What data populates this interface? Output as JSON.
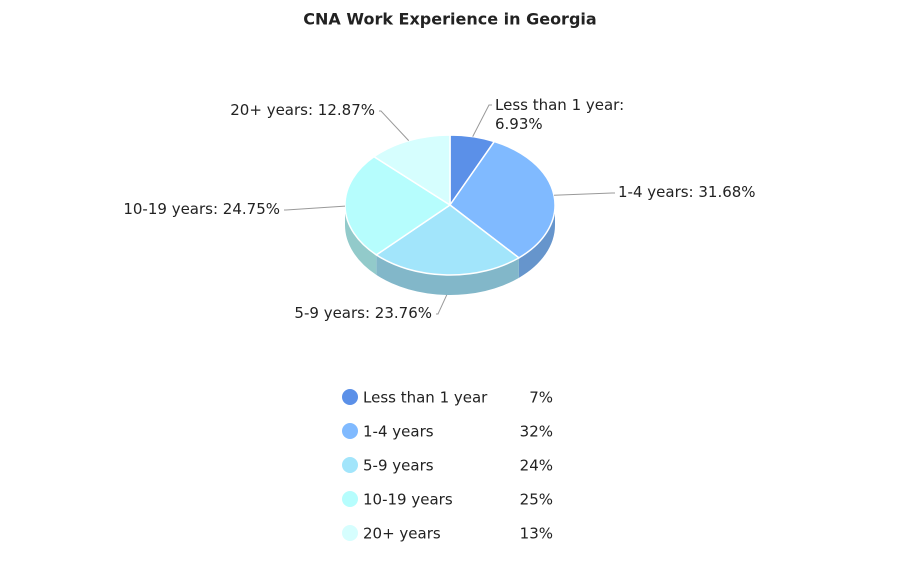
{
  "chart_data": {
    "type": "pie",
    "title": "CNA Work Experience in Georgia",
    "categories": [
      "Less than 1 year",
      "1-4 years",
      "5-9 years",
      "10-19 years",
      "20+ years"
    ],
    "values": [
      6.93,
      31.68,
      23.76,
      24.75,
      12.87
    ],
    "value_labels": [
      "Less than 1 year: 6.93%",
      "1-4 years: 31.68%",
      "5-9 years: 23.76%",
      "10-19 years: 24.75%",
      "20+ years: 12.87%"
    ],
    "legend_value_labels": [
      "7%",
      "32%",
      "24%",
      "25%",
      "13%"
    ],
    "colors": [
      "#5b90e8",
      "#80baff",
      "#a2e5fb",
      "#b6fdfd",
      "#d6fefe"
    ]
  }
}
